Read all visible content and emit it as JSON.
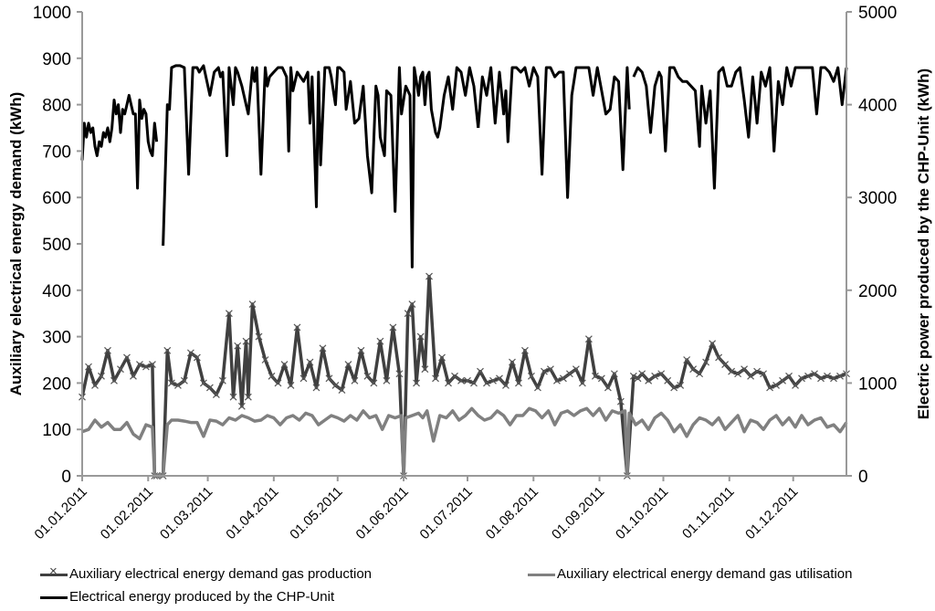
{
  "chart_data": {
    "type": "line",
    "title": "",
    "xlabel": "",
    "ylabel": "Auxiliary electrical energy demand (kWh)",
    "y2label": "Electric power produced by the CHP-Unit (kWh)",
    "ylim": [
      0,
      1000
    ],
    "y2lim": [
      0,
      5000
    ],
    "yticks": [
      0,
      100,
      200,
      300,
      400,
      500,
      600,
      700,
      800,
      900,
      1000
    ],
    "y2ticks": [
      0,
      1000,
      2000,
      3000,
      4000,
      5000
    ],
    "x_tick_labels": [
      "01.01.2011",
      "01.02.2011",
      "01.03.2011",
      "01.04.2011",
      "01.05.2011",
      "01.06.2011",
      "01.07.2011",
      "01.08.2011",
      "01.09.2011",
      "01.10.2011",
      "01.11.2011",
      "01.12.2011"
    ],
    "x_tick_days": [
      0,
      31,
      59,
      90,
      120,
      151,
      181,
      212,
      243,
      273,
      304,
      334
    ],
    "x_range_days": [
      0,
      359
    ],
    "grid": false,
    "legend_position": "bottom",
    "series": [
      {
        "name": "Auxiliary electrical energy demand gas production",
        "axis": "left",
        "color": "#404040",
        "marker": "x",
        "x_days": [
          0,
          3,
          6,
          9,
          12,
          15,
          18,
          21,
          24,
          27,
          30,
          33,
          34,
          35,
          38,
          40,
          42,
          45,
          48,
          51,
          54,
          57,
          60,
          63,
          66,
          69,
          71,
          73,
          75,
          77,
          78,
          80,
          83,
          86,
          89,
          92,
          95,
          98,
          101,
          104,
          107,
          110,
          113,
          116,
          119,
          122,
          125,
          128,
          131,
          134,
          137,
          140,
          143,
          146,
          149,
          151,
          153,
          155,
          157,
          159,
          161,
          163,
          166,
          169,
          172,
          175,
          178,
          181,
          184,
          187,
          190,
          193,
          196,
          199,
          202,
          205,
          208,
          211,
          214,
          217,
          220,
          223,
          226,
          229,
          232,
          235,
          238,
          241,
          244,
          247,
          250,
          253,
          256,
          259,
          261,
          263,
          266,
          269,
          272,
          275,
          278,
          281,
          284,
          287,
          290,
          293,
          296,
          299,
          302,
          305,
          308,
          311,
          314,
          317,
          320,
          323,
          326,
          329,
          332,
          335,
          338,
          341,
          344,
          347,
          350,
          353,
          356,
          359
        ],
        "values": [
          170,
          235,
          195,
          215,
          270,
          205,
          230,
          255,
          215,
          240,
          235,
          240,
          0,
          0,
          0,
          270,
          200,
          195,
          205,
          265,
          255,
          200,
          190,
          175,
          205,
          350,
          170,
          280,
          150,
          290,
          170,
          370,
          300,
          250,
          215,
          200,
          240,
          195,
          320,
          210,
          245,
          190,
          275,
          210,
          195,
          185,
          240,
          205,
          270,
          215,
          200,
          290,
          205,
          320,
          220,
          0,
          350,
          370,
          200,
          300,
          230,
          430,
          210,
          255,
          200,
          215,
          205,
          205,
          200,
          225,
          200,
          205,
          210,
          195,
          245,
          200,
          270,
          215,
          190,
          225,
          230,
          205,
          210,
          220,
          230,
          200,
          295,
          215,
          210,
          190,
          220,
          160,
          0,
          215,
          210,
          220,
          205,
          215,
          220,
          205,
          190,
          195,
          250,
          230,
          220,
          245,
          285,
          255,
          240,
          225,
          220,
          230,
          215,
          225,
          220,
          190,
          195,
          205,
          215,
          195,
          210,
          215,
          220,
          210,
          215,
          210,
          215,
          220
        ]
      },
      {
        "name": "Auxiliary electrical energy demand gas utilisation",
        "axis": "left",
        "color": "#808080",
        "marker": "none",
        "x_days": [
          0,
          3,
          6,
          9,
          12,
          15,
          18,
          21,
          24,
          27,
          30,
          33,
          34,
          35,
          38,
          40,
          42,
          45,
          48,
          51,
          54,
          57,
          60,
          63,
          66,
          69,
          72,
          75,
          78,
          81,
          84,
          87,
          90,
          93,
          96,
          99,
          102,
          105,
          108,
          111,
          114,
          117,
          120,
          123,
          126,
          129,
          132,
          135,
          138,
          141,
          144,
          147,
          150,
          151,
          152,
          155,
          158,
          160,
          162,
          165,
          168,
          171,
          174,
          177,
          180,
          183,
          186,
          189,
          192,
          195,
          198,
          201,
          204,
          207,
          210,
          213,
          216,
          219,
          222,
          225,
          228,
          231,
          234,
          237,
          240,
          243,
          246,
          249,
          252,
          255,
          256,
          257,
          260,
          263,
          266,
          269,
          272,
          275,
          278,
          281,
          284,
          287,
          290,
          293,
          296,
          299,
          302,
          305,
          308,
          311,
          314,
          317,
          320,
          323,
          326,
          329,
          332,
          335,
          338,
          341,
          344,
          347,
          350,
          353,
          356,
          359
        ],
        "values": [
          95,
          100,
          120,
          105,
          115,
          100,
          100,
          115,
          90,
          80,
          110,
          105,
          0,
          0,
          0,
          110,
          120,
          120,
          118,
          115,
          115,
          85,
          120,
          118,
          110,
          125,
          120,
          130,
          125,
          118,
          120,
          130,
          125,
          110,
          125,
          130,
          120,
          135,
          130,
          110,
          120,
          130,
          125,
          118,
          130,
          120,
          140,
          125,
          130,
          100,
          130,
          125,
          130,
          0,
          125,
          130,
          135,
          125,
          140,
          75,
          130,
          125,
          140,
          120,
          130,
          145,
          130,
          120,
          125,
          140,
          130,
          110,
          130,
          130,
          145,
          140,
          125,
          140,
          110,
          135,
          140,
          130,
          140,
          145,
          130,
          145,
          120,
          140,
          135,
          140,
          0,
          135,
          110,
          120,
          100,
          125,
          135,
          120,
          95,
          110,
          85,
          110,
          125,
          120,
          110,
          125,
          100,
          115,
          130,
          95,
          120,
          115,
          100,
          120,
          130,
          110,
          125,
          105,
          130,
          110,
          120,
          125,
          105,
          110,
          95,
          115
        ]
      },
      {
        "name": "Electrical energy produced by the CHP-Unit",
        "axis": "right",
        "color": "#000000",
        "marker": "none",
        "segments": [
          {
            "x_days": [
              0,
              1,
              2,
              3,
              4,
              5,
              6,
              7,
              8,
              9,
              10,
              11,
              12,
              13,
              14,
              15,
              16,
              17,
              18,
              19,
              20,
              21,
              22,
              23,
              24,
              25,
              26,
              27,
              28,
              29,
              30,
              31,
              32,
              33,
              34,
              35
            ],
            "values": [
              3400,
              3800,
              3650,
              3800,
              3700,
              3750,
              3550,
              3450,
              3600,
              3550,
              3700,
              3650,
              3750,
              3600,
              3750,
              4050,
              3900,
              4000,
              3700,
              3950,
              3900,
              4000,
              4100,
              4000,
              3900,
              3900,
              3100,
              4050,
              3850,
              3950,
              3900,
              3600,
              3500,
              3450,
              3800,
              3600
            ]
          },
          {
            "x_days": [
              38,
              40,
              41,
              42,
              44,
              46,
              48,
              50,
              52,
              53,
              54,
              55,
              57,
              60,
              62,
              64,
              65,
              66,
              68,
              69,
              71,
              72,
              73,
              75,
              76,
              77,
              78,
              80,
              81,
              82,
              84,
              86,
              87,
              88,
              90,
              92,
              94,
              96,
              97,
              98,
              99,
              101,
              104,
              106,
              107,
              108,
              110,
              111,
              112,
              114,
              116,
              117,
              119,
              120,
              121,
              123,
              124,
              126,
              128,
              130,
              132,
              134,
              136,
              138,
              139,
              140,
              142,
              143,
              145,
              147,
              149,
              150,
              152,
              154,
              155,
              156,
              158,
              159,
              160,
              161,
              162,
              163,
              164,
              166,
              167,
              168,
              170,
              172,
              174,
              176,
              178,
              180,
              182,
              184,
              186
            ],
            "values": [
              2480,
              4000,
              3950,
              4400,
              4420,
              4420,
              4400,
              3250,
              4400,
              4400,
              4400,
              4350,
              4420,
              4100,
              4350,
              4400,
              4300,
              4350,
              3450,
              4400,
              4000,
              4400,
              4350,
              4200,
              4100,
              4000,
              3900,
              4400,
              4250,
              4400,
              3250,
              4400,
              4200,
              4300,
              4350,
              4400,
              4400,
              4300,
              3500,
              4400,
              4150,
              4350,
              4250,
              4350,
              3800,
              4300,
              2900,
              4350,
              3350,
              4400,
              4400,
              4300,
              4000,
              4400,
              4400,
              4350,
              3950,
              4250,
              3800,
              3850,
              4200,
              3450,
              3050,
              4200,
              4100,
              3650,
              3450,
              4150,
              4100,
              2850,
              4400,
              3900,
              4200,
              4100,
              2250,
              4400,
              4100,
              4300,
              4350,
              4000,
              4300,
              4350,
              3950,
              3700,
              3650,
              3750,
              4100,
              4300,
              3950,
              4400,
              4350,
              4100,
              4400,
              4200,
              3750
            ]
          },
          {
            "x_days": [
              186,
              188,
              190,
              192,
              194,
              196,
              198,
              199,
              200,
              202,
              204,
              206,
              208,
              210,
              212,
              214,
              216,
              218,
              220,
              222,
              224,
              226,
              228,
              230,
              232,
              234,
              236,
              238,
              240,
              242,
              244,
              246,
              248,
              250,
              252,
              254,
              256,
              257
            ],
            "values": [
              3750,
              4300,
              4100,
              4400,
              3800,
              4350,
              3900,
              4150,
              3600,
              4400,
              4400,
              4350,
              4400,
              4200,
              4400,
              4300,
              3250,
              4400,
              4400,
              4300,
              4350,
              4350,
              3000,
              4100,
              4400,
              4400,
              4400,
              4400,
              4100,
              4400,
              4150,
              3900,
              3950,
              4300,
              4250,
              3300,
              4400,
              3950
            ]
          },
          {
            "x_days": [
              259,
              261,
              263,
              265,
              267,
              269,
              271,
              272,
              274,
              276,
              278,
              280,
              282,
              284,
              286,
              288,
              290,
              291,
              293,
              295,
              297,
              299,
              301,
              303,
              305,
              307,
              309,
              311,
              313,
              315,
              317,
              319,
              321,
              323,
              325,
              327,
              329,
              331,
              333,
              335,
              337,
              339,
              341,
              343,
              345,
              347,
              349,
              351,
              353,
              355,
              357,
              359
            ],
            "values": [
              4300,
              4400,
              4350,
              4200,
              3700,
              4200,
              4350,
              4300,
              3500,
              4400,
              4400,
              4300,
              4250,
              4250,
              4200,
              4150,
              3550,
              4200,
              3800,
              4150,
              3100,
              4350,
              4400,
              4200,
              4200,
              4350,
              4400,
              4050,
              3650,
              4300,
              3800,
              4350,
              4200,
              4400,
              3500,
              4250,
              4000,
              4400,
              4200,
              4400,
              4400,
              4400,
              4400,
              4400,
              3900,
              4400,
              4400,
              4350,
              4250,
              4400,
              4000,
              4400
            ]
          }
        ]
      }
    ]
  },
  "legend": {
    "items": [
      {
        "label": "Auxiliary electrical energy demand gas production"
      },
      {
        "label": "Auxiliary electrical energy demand gas utilisation"
      },
      {
        "label": "Electrical energy produced by the CHP-Unit"
      }
    ]
  },
  "axes": {
    "left_title": "Auxiliary electrical energy demand (kWh)",
    "right_title": "Electric power produced by the CHP-Unit (kWh)",
    "axis_color": "#999999"
  }
}
